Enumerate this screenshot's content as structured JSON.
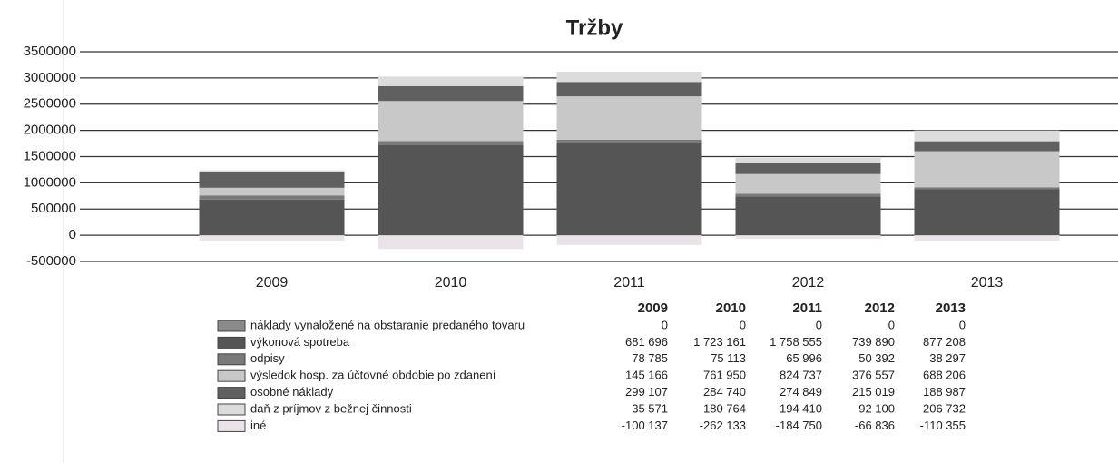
{
  "chart_data": {
    "type": "stacked_bar",
    "title": "Tržby",
    "categories": [
      "2009",
      "2010",
      "2011",
      "2012",
      "2013"
    ],
    "ylim": [
      -500000,
      3500000
    ],
    "yticks": [
      3500000,
      3000000,
      2500000,
      2000000,
      1500000,
      1000000,
      500000,
      0,
      -500000
    ],
    "grid": true,
    "series": [
      {
        "name": "náklady vynaložené na obstaranie predaného tovaru",
        "color": "#8a8a8a",
        "values": [
          0,
          0,
          0,
          0,
          0
        ],
        "value_labels": [
          "0",
          "0",
          "0",
          "0",
          "0"
        ]
      },
      {
        "name": "výkonová spotreba",
        "color": "#555555",
        "values": [
          681696,
          1723161,
          1758555,
          739890,
          877208
        ],
        "value_labels": [
          "681 696",
          "1 723 161",
          "1 758 555",
          "739 890",
          "877 208"
        ]
      },
      {
        "name": "odpisy",
        "color": "#7a7a7a",
        "values": [
          78785,
          75113,
          65996,
          50392,
          38297
        ],
        "value_labels": [
          "78 785",
          "75 113",
          "65 996",
          "50 392",
          "38 297"
        ]
      },
      {
        "name": "výsledok hosp. za účtovné obdobie po zdanení",
        "color": "#c8c8c8",
        "values": [
          145166,
          761950,
          824737,
          376557,
          688206
        ],
        "value_labels": [
          "145 166",
          "761 950",
          "824 737",
          "376 557",
          "688 206"
        ]
      },
      {
        "name": "osobné náklady",
        "color": "#606060",
        "values": [
          299107,
          284740,
          274849,
          215019,
          188987
        ],
        "value_labels": [
          "299 107",
          "284 740",
          "274 849",
          "215 019",
          "188 987"
        ]
      },
      {
        "name": "daň z príjmov z bežnej činnosti",
        "color": "#dcdcdc",
        "values": [
          35571,
          180764,
          194410,
          92100,
          206732
        ],
        "value_labels": [
          "35 571",
          "180 764",
          "194 410",
          "92 100",
          "206 732"
        ]
      },
      {
        "name": "iné",
        "color": "#ebe3ea",
        "values": [
          -100137,
          -262133,
          -184750,
          -66836,
          -110355
        ],
        "value_labels": [
          "-100 137",
          "-262 133",
          "-184 750",
          "-66 836",
          "-110 355"
        ]
      }
    ]
  }
}
